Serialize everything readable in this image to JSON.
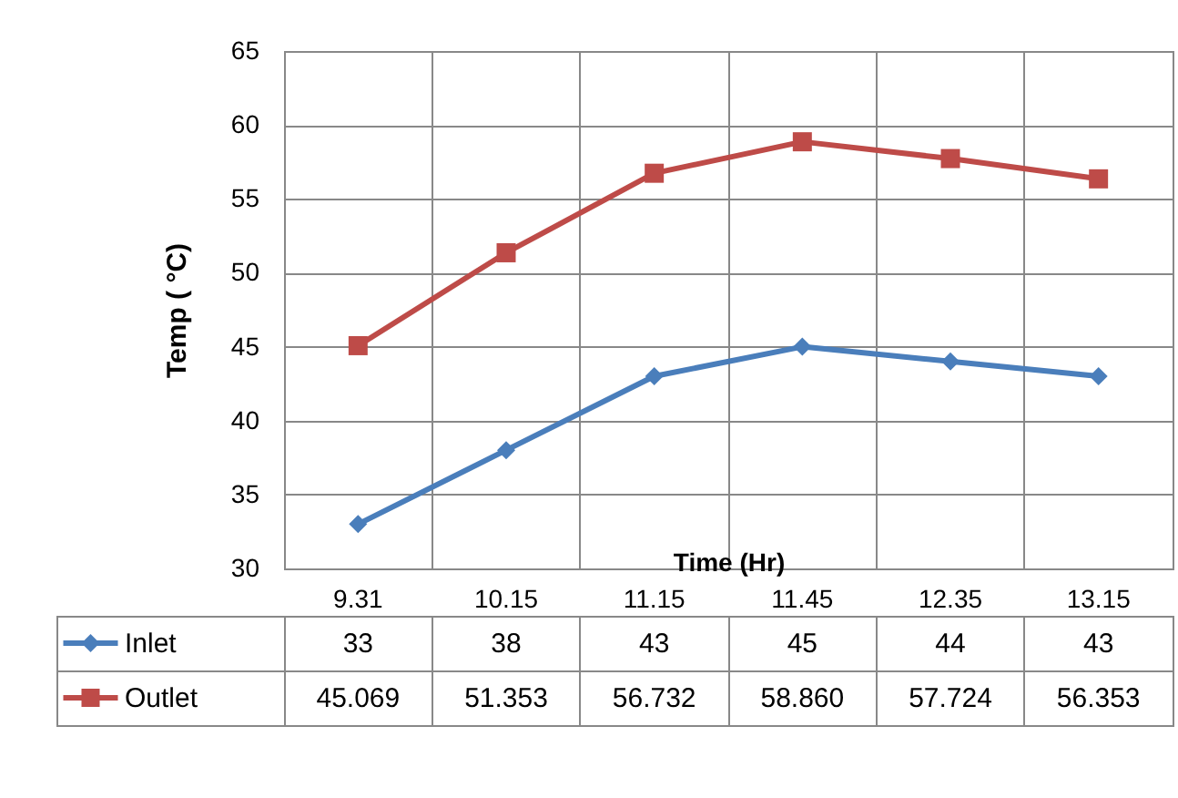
{
  "chart_data": {
    "type": "line",
    "xlabel": "Time (Hr)",
    "ylabel": "Temp ( °C)",
    "categories": [
      "9.31",
      "10.15",
      "11.15",
      "11.45",
      "12.35",
      "13.15"
    ],
    "series": [
      {
        "name": "Inlet",
        "color": "#4a7ebb",
        "marker": "diamond",
        "values": [
          33,
          38,
          43,
          45,
          44,
          43
        ],
        "value_labels": [
          "33",
          "38",
          "43",
          "45",
          "44",
          "43"
        ]
      },
      {
        "name": "Outlet",
        "color": "#be4b48",
        "marker": "square",
        "values": [
          45.069,
          51.353,
          56.732,
          58.86,
          57.724,
          56.353
        ],
        "value_labels": [
          "45.069",
          "51.353",
          "56.732",
          "58.860",
          "57.724",
          "56.353"
        ]
      }
    ],
    "ylim": [
      30,
      65
    ],
    "yticks": [
      30,
      35,
      40,
      45,
      50,
      55,
      60,
      65
    ],
    "grid": true,
    "legend": "bottom left"
  }
}
